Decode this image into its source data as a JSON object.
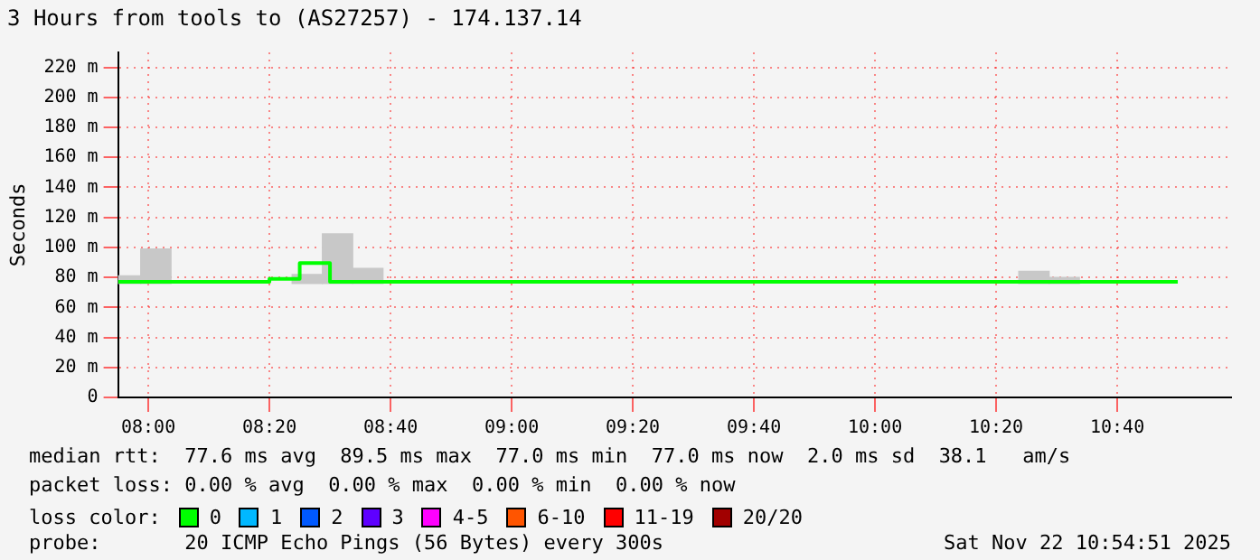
{
  "chart_data": {
    "type": "step",
    "title": "3 Hours from tools to (AS27257) - 174.137.14",
    "ylabel": "Seconds",
    "xlim": [
      7.9167,
      10.98
    ],
    "xticks": [
      {
        "value": 8,
        "label": "08:00"
      },
      {
        "value": 8.3333,
        "label": "08:20"
      },
      {
        "value": 8.6667,
        "label": "08:40"
      },
      {
        "value": 9,
        "label": "09:00"
      },
      {
        "value": 9.3333,
        "label": "09:20"
      },
      {
        "value": 9.6667,
        "label": "09:40"
      },
      {
        "value": 10,
        "label": "10:00"
      },
      {
        "value": 10.3333,
        "label": "10:20"
      },
      {
        "value": 10.6667,
        "label": "10:40"
      }
    ],
    "ylim": [
      0,
      230
    ],
    "yticks": [
      {
        "value": 0,
        "label": "0"
      },
      {
        "value": 20,
        "label": "20 m"
      },
      {
        "value": 40,
        "label": "40 m"
      },
      {
        "value": 60,
        "label": "60 m"
      },
      {
        "value": 80,
        "label": "80 m"
      },
      {
        "value": 100,
        "label": "100 m"
      },
      {
        "value": 120,
        "label": "120 m"
      },
      {
        "value": 140,
        "label": "140 m"
      },
      {
        "value": 160,
        "label": "160 m"
      },
      {
        "value": 180,
        "label": "180 m"
      },
      {
        "value": 200,
        "label": "200 m"
      },
      {
        "value": 220,
        "label": "220 m"
      }
    ],
    "grid": true,
    "legend": false,
    "series": [
      {
        "type": "bar",
        "color": "#c8c8c8",
        "x": [
          7.9375,
          8.0208,
          8.4375,
          8.5208,
          8.6042,
          10.4375,
          10.5208
        ],
        "base": [
          76,
          76,
          76,
          76,
          76,
          76,
          76
        ],
        "values": [
          5,
          23,
          6,
          33,
          10,
          8,
          4
        ]
      },
      {
        "color": "#00ff00",
        "x": [
          7.9167,
          8,
          8.0833,
          8.1667,
          8.25,
          8.3333,
          8.4167,
          8.5,
          8.5833,
          8.6667,
          8.75,
          8.8333,
          8.9167,
          9,
          9.0833,
          9.1667,
          9.25,
          9.3333,
          9.4167,
          9.5,
          9.5833,
          9.6667,
          9.75,
          9.8333,
          9.9167,
          10,
          10.0833,
          10.1667,
          10.25,
          10.3333,
          10.4167,
          10.5,
          10.5833,
          10.6667,
          10.75,
          10.8333
        ],
        "values": [
          77,
          77,
          77,
          77,
          77,
          77,
          79,
          89.5,
          77,
          77,
          77,
          77,
          77,
          77,
          77,
          77,
          77,
          77,
          77,
          77,
          77,
          77,
          77,
          77,
          77,
          77,
          77,
          77,
          77,
          77,
          77,
          77,
          77,
          77,
          77,
          77
        ]
      }
    ],
    "annotations": [
      "median rtt:  77.6 ms avg  89.5 ms max  77.0 ms min  77.0 ms now  2.0 ms sd  38.1   am/s",
      "packet loss: 0.00 % avg  0.00 % max  0.00 % min  0.00 % now",
      "loss color:",
      "0",
      "1",
      "2",
      "3",
      "4-5",
      "6-10",
      "11-19",
      "20/20",
      "probe:       20 ICMP Echo Pings (56 Bytes) every 300s",
      "Sat Nov 22 10:54:51 2025"
    ]
  }
}
